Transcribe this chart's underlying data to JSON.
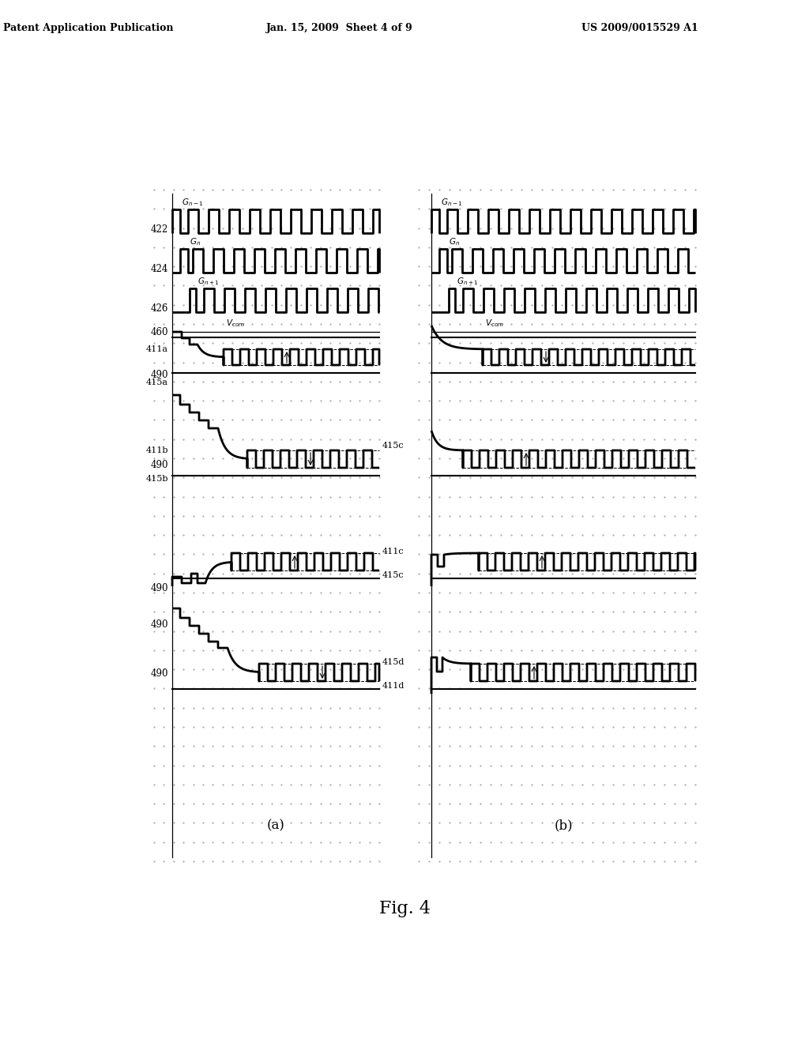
{
  "header_left": "Patent Application Publication",
  "header_center": "Jan. 15, 2009  Sheet 4 of 9",
  "header_right": "US 2009/0015529 A1",
  "fig_label": "Fig. 4",
  "label_a": "(a)",
  "label_b": "(b)"
}
